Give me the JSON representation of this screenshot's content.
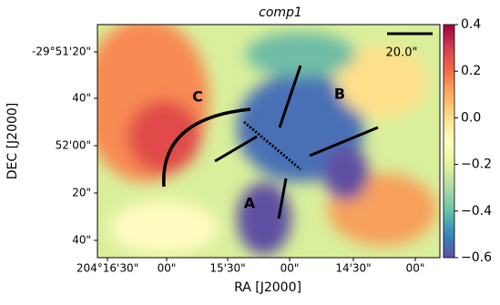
{
  "chart_data": {
    "type": "image",
    "title": "comp1",
    "x_label": "RA [J2000]",
    "y_label": "DEC [J2000]",
    "xticks": [
      "204°16'30\"",
      "00\"",
      "15'30\"",
      "00\"",
      "14'30\"",
      "00\""
    ],
    "yticks": [
      "-29°51'20\"",
      "40\"",
      "52'00\"",
      "20\"",
      "40\""
    ],
    "colormap": "Spectral_r",
    "clim": [
      -0.6,
      0.4
    ],
    "cticks": [
      {
        "value": 0.4,
        "label": "0.4"
      },
      {
        "value": 0.2,
        "label": "0.2"
      },
      {
        "value": 0,
        "label": "0.0"
      },
      {
        "value": -0.2,
        "label": "−0.2"
      },
      {
        "value": -0.4,
        "label": "−0.4"
      },
      {
        "value": -0.6,
        "label": "−0.6"
      }
    ],
    "annotations": [
      "A",
      "B",
      "C"
    ],
    "scale_bar": "20.0\""
  }
}
